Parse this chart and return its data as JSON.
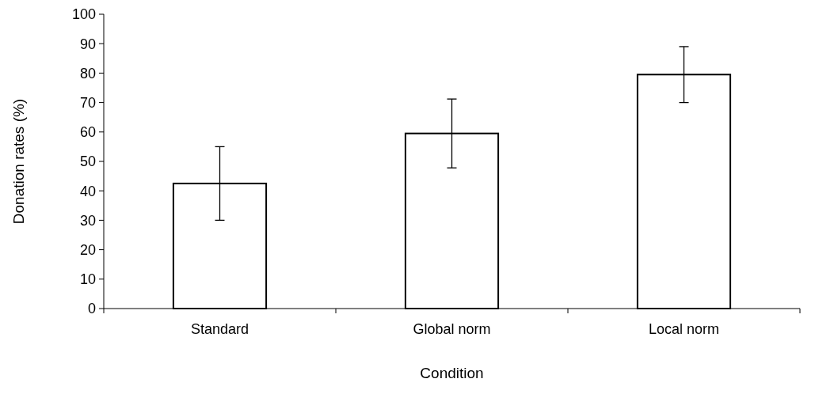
{
  "chart_data": {
    "type": "bar",
    "xlabel": "Condition",
    "ylabel": "Donation rates (%)",
    "categories": [
      "Standard",
      "Global norm",
      "Local norm"
    ],
    "values": [
      42.5,
      59.5,
      79.5
    ],
    "errors": [
      12.5,
      11.7,
      9.5
    ],
    "color": "#ffffff",
    "ylim": [
      0,
      100
    ],
    "yticks": [
      0,
      10,
      20,
      30,
      40,
      50,
      60,
      70,
      80,
      90,
      100
    ],
    "grid": false
  }
}
